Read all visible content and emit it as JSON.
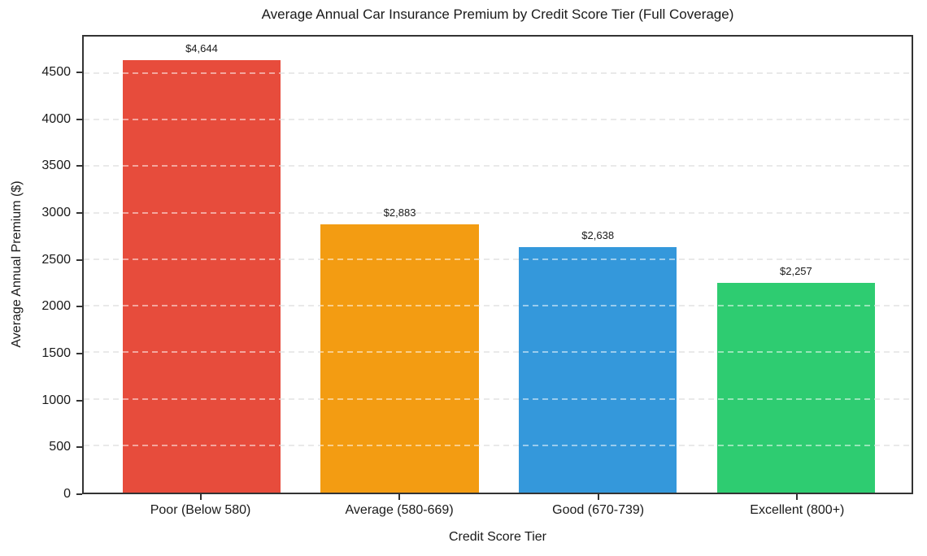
{
  "page": {
    "background_color": "#ffffff",
    "text_color": "#1a1a1a",
    "spine_color": "#333333",
    "gridline_color": "#d3d3d3"
  },
  "chart_data": {
    "type": "bar",
    "title": "Average Annual Car Insurance Premium by Credit Score Tier (Full Coverage)",
    "xlabel": "Credit Score Tier",
    "ylabel": "Average Annual Premium ($)",
    "categories": [
      "Poor (Below 580)",
      "Average (580-669)",
      "Good (670-739)",
      "Excellent (800+)"
    ],
    "values": [
      4644,
      2883,
      2638,
      2257
    ],
    "value_labels": [
      "$4,644",
      "$2,883",
      "$2,638",
      "$2,257"
    ],
    "bar_colors": [
      "#e74c3c",
      "#f39c12",
      "#3498db",
      "#2ecc71"
    ],
    "ylim": [
      0,
      4900
    ],
    "yticks": [
      0,
      500,
      1000,
      1500,
      2000,
      2500,
      3000,
      3500,
      4000,
      4500
    ],
    "grid": "horizontal dashed",
    "legend": "none"
  }
}
